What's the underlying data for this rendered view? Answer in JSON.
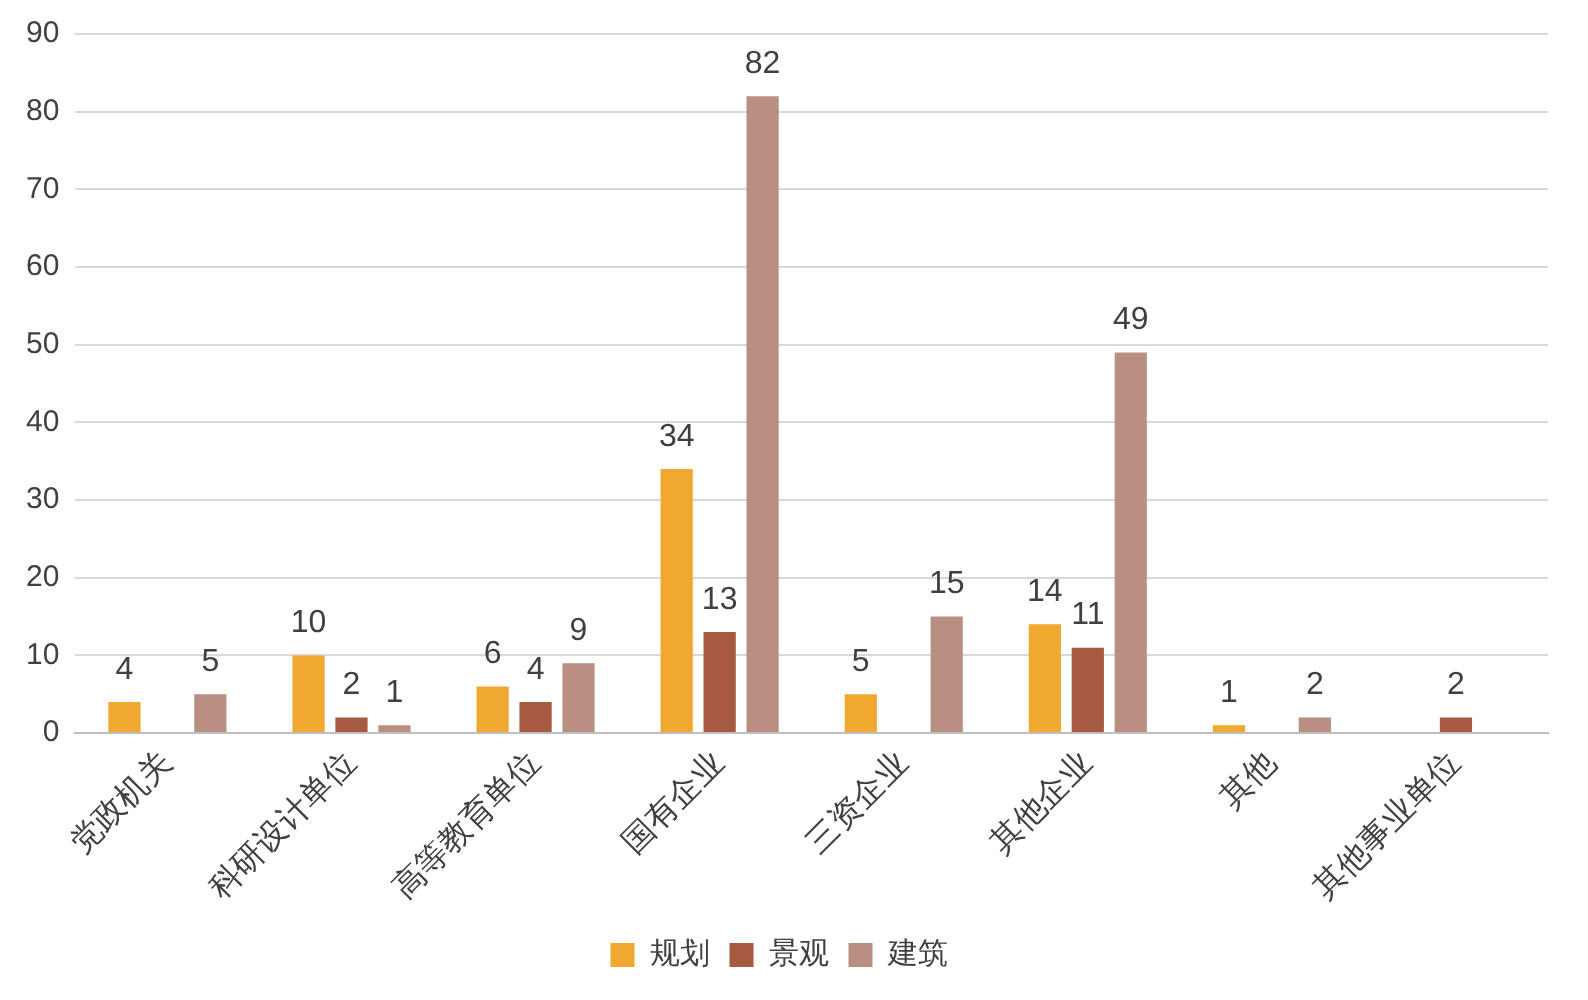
{
  "chart_data": {
    "type": "bar",
    "categories": [
      "党政机关",
      "科研设计单位",
      "高等教育单位",
      "国有企业",
      "三资企业",
      "其他企业",
      "其他",
      "其他事业单位"
    ],
    "series": [
      {
        "name": "规划",
        "color": "#f0a830",
        "values": [
          4,
          10,
          6,
          34,
          5,
          14,
          1,
          null
        ]
      },
      {
        "name": "景观",
        "color": "#a65a42",
        "values": [
          null,
          2,
          4,
          13,
          null,
          11,
          null,
          2
        ]
      },
      {
        "name": "建筑",
        "color": "#b98f82",
        "values": [
          5,
          1,
          9,
          82,
          15,
          49,
          2,
          null
        ]
      }
    ],
    "ylim": [
      0,
      90
    ],
    "yticks": [
      0,
      10,
      20,
      30,
      40,
      50,
      60,
      70,
      80,
      90
    ],
    "grid": "y",
    "legend": "bottom",
    "data_labels": true
  }
}
